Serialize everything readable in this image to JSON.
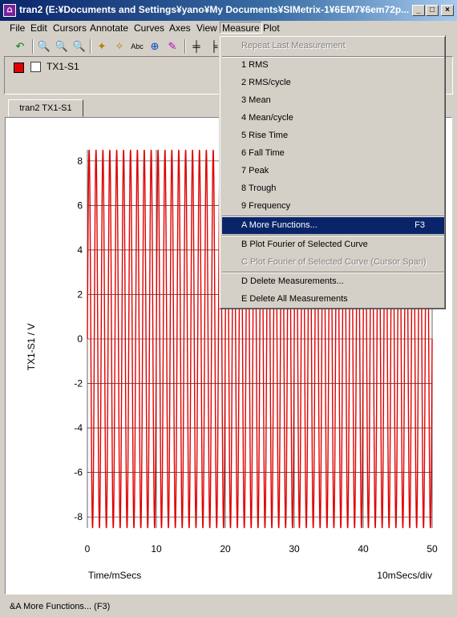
{
  "window": {
    "title": "tran2 (E:¥Documents and Settings¥yano¥My Documents¥SIMetrix-1¥6EM7¥6em72p...",
    "icon": "simetrix-app-icon",
    "minimize": "_",
    "maximize": "□",
    "close": "×"
  },
  "menubar": [
    {
      "label": "File"
    },
    {
      "label": "Edit"
    },
    {
      "label": "Cursors"
    },
    {
      "label": "Annotate"
    },
    {
      "label": "Curves"
    },
    {
      "label": "Axes"
    },
    {
      "label": "View"
    },
    {
      "label": "Measure"
    },
    {
      "label": "Plot"
    }
  ],
  "legend": {
    "curve_label": "TX1-S1",
    "curve_color": "#e00000"
  },
  "tab": {
    "label": "tran2 TX1-S1"
  },
  "chart_data": {
    "type": "line",
    "ylabel": "TX1-S1 / V",
    "xlabel": "Time/mSecs",
    "scale_note": "10mSecs/div",
    "xlim": [
      0,
      50
    ],
    "ylim": [
      -8.5,
      8.5
    ],
    "x_ticks": [
      0,
      10,
      20,
      30,
      40,
      50
    ],
    "y_ticks": [
      8,
      6,
      4,
      2,
      0,
      -2,
      -4,
      -6,
      -8
    ],
    "series": [
      {
        "color": "#e00000",
        "waveform": "sine",
        "amplitude": 8.5,
        "frequency_per_ms": 1.0,
        "x_range": [
          0,
          50
        ]
      }
    ]
  },
  "measure_menu": {
    "items": [
      {
        "label": "Repeat Last Measurement",
        "disabled": true
      },
      {
        "label": "1 RMS"
      },
      {
        "label": "2 RMS/cycle"
      },
      {
        "label": "3 Mean"
      },
      {
        "label": "4 Mean/cycle"
      },
      {
        "label": "5 Rise Time"
      },
      {
        "label": "6 Fall Time"
      },
      {
        "label": "7 Peak"
      },
      {
        "label": "8 Trough"
      },
      {
        "label": "9 Frequency"
      },
      {
        "label": "A More Functions...",
        "shortcut": "F3",
        "selected": true
      },
      {
        "label": "B Plot Fourier of Selected Curve"
      },
      {
        "label": "C Plot Fourier of Selected Curve (Cursor Span)",
        "disabled": true
      },
      {
        "label": "D Delete Measurements..."
      },
      {
        "label": "E Delete All Measurements"
      }
    ]
  },
  "status": {
    "text": "&A More Functions... (F3)"
  }
}
